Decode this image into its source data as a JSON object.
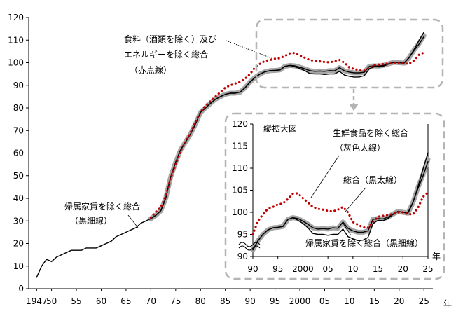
{
  "chart_data": [
    {
      "id": "main",
      "type": "line",
      "x_unit": "年",
      "ylim": [
        0,
        120
      ],
      "y_ticks": [
        0,
        10,
        20,
        30,
        40,
        50,
        60,
        70,
        80,
        90,
        100,
        110,
        120
      ],
      "x_tick_labels": [
        {
          "x": 1947,
          "label": "1947"
        },
        {
          "x": 1950,
          "label": "50"
        },
        {
          "x": 1955,
          "label": "55"
        },
        {
          "x": 1960,
          "label": "60"
        },
        {
          "x": 1965,
          "label": "65"
        },
        {
          "x": 1970,
          "label": "70"
        },
        {
          "x": 1975,
          "label": "75"
        },
        {
          "x": 1980,
          "label": "80"
        },
        {
          "x": 1985,
          "label": "85"
        },
        {
          "x": 1990,
          "label": "90"
        },
        {
          "x": 1995,
          "label": "95"
        },
        {
          "x": 2000,
          "label": "2000"
        },
        {
          "x": 2005,
          "label": "05"
        },
        {
          "x": 2010,
          "label": "10"
        },
        {
          "x": 2015,
          "label": "15"
        },
        {
          "x": 2020,
          "label": "20"
        },
        {
          "x": 2025,
          "label": "25"
        }
      ],
      "grid": false,
      "series": [
        {
          "key": "core_core",
          "style": "dotted-red",
          "color": "#c00000",
          "x": [
            1970,
            1971,
            1972,
            1973,
            1974,
            1975,
            1976,
            1977,
            1978,
            1979,
            1980,
            1981,
            1982,
            1983,
            1984,
            1985,
            1986,
            1987,
            1988,
            1989,
            1990,
            1991,
            1992,
            1993,
            1994,
            1995,
            1996,
            1997,
            1998,
            1999,
            2000,
            2001,
            2002,
            2003,
            2004,
            2005,
            2006,
            2007,
            2008,
            2009,
            2010,
            2011,
            2012,
            2013,
            2014,
            2015,
            2016,
            2017,
            2018,
            2019,
            2020,
            2021,
            2022,
            2023,
            2024,
            2025
          ],
          "y": [
            31.5,
            34,
            36,
            41,
            49,
            55,
            61,
            65,
            69,
            74,
            78,
            81,
            83,
            85,
            87,
            89,
            90,
            90.8,
            91.5,
            93,
            95,
            98,
            99.5,
            100.8,
            101.2,
            101.8,
            102,
            103,
            104.2,
            104.3,
            103.2,
            102.2,
            101.2,
            100.8,
            100.6,
            100.3,
            100.2,
            100.6,
            101.2,
            100,
            97.8,
            97.2,
            96.6,
            96.5,
            97.8,
            99,
            99.2,
            99.4,
            99.6,
            100,
            100,
            99.6,
            99.5,
            101,
            103.5,
            104.5
          ]
        },
        {
          "key": "total",
          "style": "thick-gray",
          "color": "#a6a6a6",
          "x": [
            1970,
            1971,
            1972,
            1973,
            1974,
            1975,
            1976,
            1977,
            1978,
            1979,
            1980,
            1981,
            1982,
            1983,
            1984,
            1985,
            1986,
            1987,
            1988,
            1989,
            1990,
            1991,
            1992,
            1993,
            1994,
            1995,
            1996,
            1997,
            1998,
            1999,
            2000,
            2001,
            2002,
            2003,
            2004,
            2005,
            2006,
            2007,
            2008,
            2009,
            2010,
            2011,
            2012,
            2013,
            2014,
            2015,
            2016,
            2017,
            2018,
            2019,
            2020,
            2021,
            2022,
            2023,
            2024,
            2025
          ],
          "y": [
            31,
            32.5,
            34.5,
            40,
            49.5,
            56,
            61.5,
            65,
            68.5,
            73,
            78,
            80,
            82,
            83.8,
            85,
            86,
            86.5,
            86.5,
            87,
            89,
            91.5,
            93.5,
            95,
            96,
            96.5,
            96.6,
            96.8,
            98.4,
            98.8,
            98.6,
            98,
            97.3,
            96.5,
            96.2,
            96.3,
            96.2,
            96.5,
            96.4,
            97.8,
            96.4,
            95.8,
            95.5,
            95.5,
            95.8,
            98.4,
            98.6,
            98.5,
            98.9,
            99.6,
            100.2,
            100,
            99.8,
            102.2,
            105.6,
            108.5,
            112
          ]
        },
        {
          "key": "fresh_excl",
          "style": "thin-black",
          "color": "#000000",
          "x": [
            1970,
            1971,
            1972,
            1973,
            1974,
            1975,
            1976,
            1977,
            1978,
            1979,
            1980,
            1981,
            1982,
            1983,
            1984,
            1985,
            1986,
            1987,
            1988,
            1989,
            1990,
            1991,
            1992,
            1993,
            1994,
            1995,
            1996,
            1997,
            1998,
            1999,
            2000,
            2001,
            2002,
            2003,
            2004,
            2005,
            2006,
            2007,
            2008,
            2009,
            2010,
            2011,
            2012,
            2013,
            2014,
            2015,
            2016,
            2017,
            2018,
            2019,
            2020,
            2021,
            2022,
            2023,
            2024,
            2025
          ],
          "y": [
            31,
            32.5,
            34.5,
            40,
            49.5,
            56,
            61.5,
            65,
            68.5,
            73,
            78,
            80,
            82,
            83.8,
            85,
            86,
            86.5,
            86.5,
            87,
            89,
            91.5,
            93.5,
            95,
            96,
            96.5,
            96.6,
            96.8,
            98.4,
            98.8,
            98.6,
            98,
            97.3,
            96.5,
            96.2,
            96.3,
            96.2,
            96.5,
            96.4,
            97.8,
            96.4,
            95.8,
            95.5,
            95.5,
            95.8,
            98.4,
            98.6,
            98.5,
            98.9,
            99.6,
            100.2,
            100,
            99.8,
            102.2,
            105.8,
            109.8,
            113.5
          ]
        },
        {
          "key": "excl_imputed_rent",
          "style": "thin-black",
          "color": "#000000",
          "x": [
            1947,
            1948,
            1949,
            1950,
            1951,
            1952,
            1953,
            1954,
            1955,
            1956,
            1957,
            1958,
            1959,
            1960,
            1961,
            1962,
            1963,
            1964,
            1965,
            1966,
            1967,
            1968,
            1969,
            1970,
            1971,
            1972,
            1973,
            1974,
            1975,
            1976,
            1977,
            1978,
            1979,
            1980,
            1981,
            1982,
            1983,
            1984,
            1985,
            1986,
            1987,
            1988,
            1989,
            1990,
            1991,
            1992,
            1993,
            1994,
            1995,
            1996,
            1997,
            1998,
            1999,
            2000,
            2001,
            2002,
            2003,
            2004,
            2005,
            2006,
            2007,
            2008,
            2009,
            2010,
            2011,
            2012,
            2013,
            2014,
            2015,
            2016,
            2017,
            2018,
            2019,
            2020,
            2021,
            2022,
            2023,
            2024,
            2025
          ],
          "y": [
            5,
            10,
            13,
            12,
            14,
            15,
            16,
            17,
            17,
            17,
            18,
            18,
            18,
            19,
            20,
            21,
            23,
            24,
            25,
            26,
            27,
            29,
            30,
            31,
            32.5,
            34.5,
            40,
            49.5,
            56,
            61.5,
            65,
            68.5,
            73,
            78,
            80,
            82,
            83.8,
            85,
            86,
            86.5,
            86.5,
            87,
            89,
            91.5,
            93.5,
            95,
            96,
            96.5,
            96.6,
            96.8,
            98.4,
            98.8,
            98.2,
            97.5,
            96.5,
            95.2,
            95,
            95,
            94.8,
            95,
            95,
            96.2,
            94.5,
            94,
            93.6,
            93.7,
            94.3,
            97.4,
            98.2,
            98.1,
            98.6,
            99.5,
            100.2,
            100,
            99.9,
            102.3,
            105.4,
            108.2,
            111.5
          ]
        }
      ],
      "annotations": [
        {
          "lines": [
            "食料（酒類を除く）及び",
            "エネルギーを除く総合",
            "（赤点線）"
          ]
        },
        {
          "lines": [
            "帰属家賃を除く総合",
            "（黒細線）"
          ]
        }
      ]
    },
    {
      "id": "inset",
      "type": "line",
      "title": "縦拡大図",
      "x_unit": "年",
      "ylim": [
        90,
        120
      ],
      "xlim": [
        1990,
        2025
      ],
      "y_ticks": [
        90,
        95,
        100,
        105,
        110,
        115,
        120
      ],
      "x_tick_labels": [
        {
          "x": 1990,
          "label": "90"
        },
        {
          "x": 1995,
          "label": "95"
        },
        {
          "x": 2000,
          "label": "2000"
        },
        {
          "x": 2005,
          "label": "05"
        },
        {
          "x": 2010,
          "label": "10"
        },
        {
          "x": 2015,
          "label": "15"
        },
        {
          "x": 2020,
          "label": "20"
        },
        {
          "x": 2025,
          "label": "25"
        }
      ],
      "series_from": "main",
      "annotations": [
        {
          "lines": [
            "生鮮食品を除く総合",
            "（灰色太線）"
          ]
        },
        {
          "lines": [
            "総合（黒太線）"
          ]
        },
        {
          "lines": [
            "帰属家賃を除く総合（黒細線）"
          ]
        }
      ]
    }
  ]
}
